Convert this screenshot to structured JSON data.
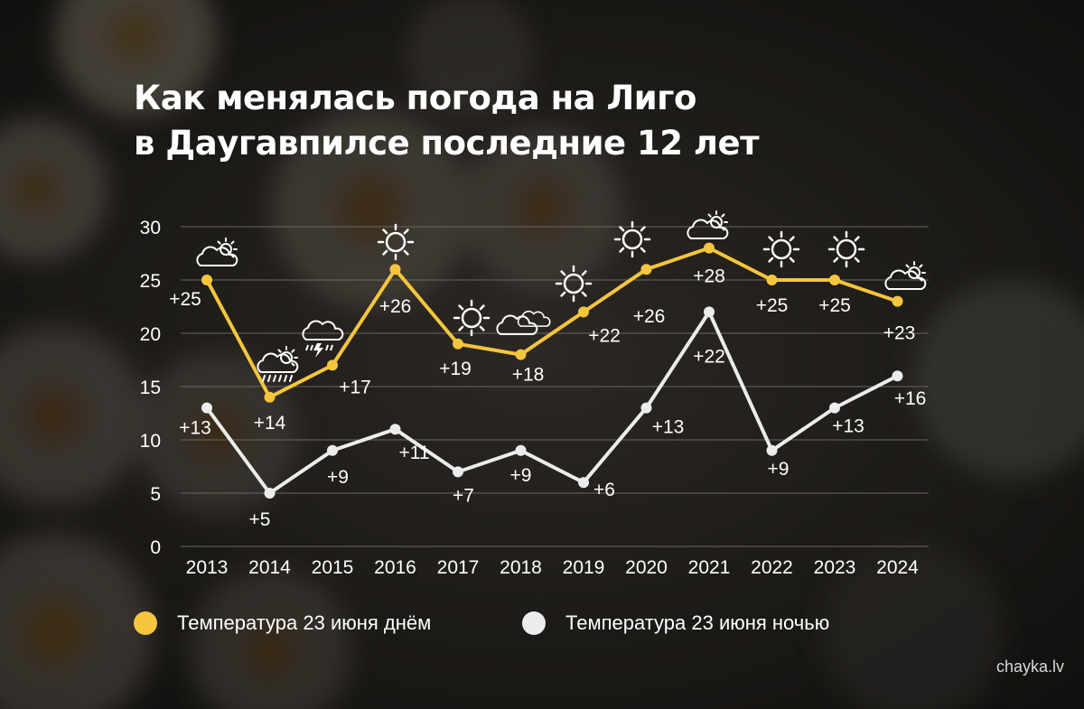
{
  "title_line1": "Как менялась погода на Лиго",
  "title_line2": "в Даугавпилсе последние 12 лет",
  "source": "chayka.lv",
  "colors": {
    "day": "#f5c53d",
    "night": "#ececec",
    "grid": "#6a6660",
    "text": "#ffffff"
  },
  "chart_data": {
    "type": "line",
    "categories": [
      "2013",
      "2014",
      "2015",
      "2016",
      "2017",
      "2018",
      "2019",
      "2020",
      "2021",
      "2022",
      "2023",
      "2024"
    ],
    "ylim": [
      0,
      30
    ],
    "yticks": [
      "0",
      "5",
      "10",
      "15",
      "20",
      "25",
      "30"
    ],
    "grid": true,
    "series": [
      {
        "name": "Температура 23 июня днём",
        "values": [
          25,
          14,
          17,
          26,
          19,
          18,
          22,
          26,
          28,
          25,
          25,
          23
        ],
        "labels": [
          "+25",
          "+14",
          "+17",
          "+26",
          "+19",
          "+18",
          "+22",
          "+26",
          "+28",
          "+25",
          "+25",
          "+23"
        ],
        "weather_icons": [
          "partly-cloudy-icon",
          "rain-cloud-icon",
          "thunderstorm-icon",
          "sun-icon",
          "sun-icon",
          "clouds-icon",
          "sun-icon",
          "sun-icon",
          "partly-cloudy-icon",
          "sun-icon",
          "sun-icon",
          "partly-cloudy-icon"
        ]
      },
      {
        "name": "Температура 23 июня ночью",
        "values": [
          13,
          5,
          9,
          11,
          7,
          9,
          6,
          13,
          22,
          9,
          13,
          16
        ],
        "labels": [
          "+13",
          "+5",
          "+9",
          "+11",
          "+7",
          "+9",
          "+6",
          "+13",
          "+22",
          "+9",
          "+13",
          "+16"
        ]
      }
    ],
    "legend": [
      "Температура 23 июня днём",
      "Температура 23 июня ночью"
    ]
  }
}
